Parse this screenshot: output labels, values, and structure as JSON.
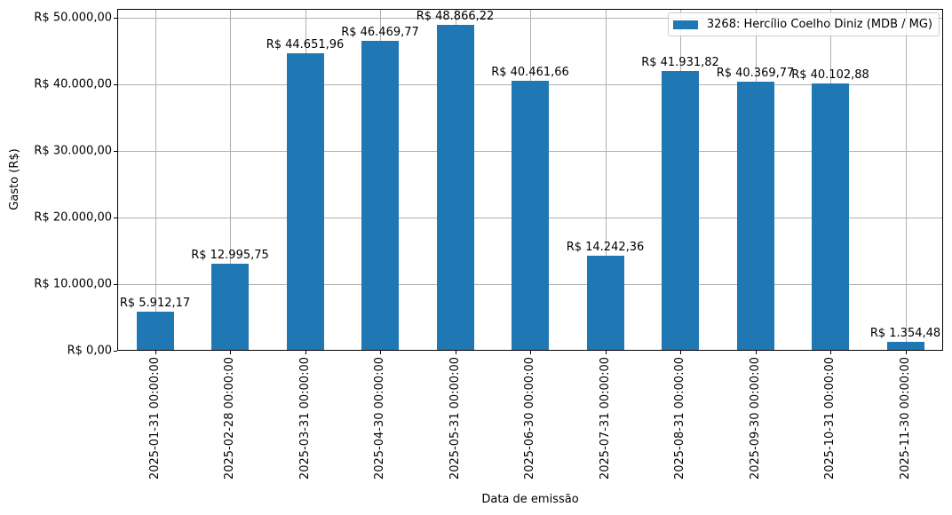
{
  "chart_data": {
    "type": "bar",
    "title": "",
    "xlabel": "Data de emissão",
    "ylabel": "Gasto (R$)",
    "ylim": [
      0,
      51310
    ],
    "grid": true,
    "legend_position": "upper right",
    "categories": [
      "2025-01-31 00:00:00",
      "2025-02-28 00:00:00",
      "2025-03-31 00:00:00",
      "2025-04-30 00:00:00",
      "2025-05-31 00:00:00",
      "2025-06-30 00:00:00",
      "2025-07-31 00:00:00",
      "2025-08-31 00:00:00",
      "2025-09-30 00:00:00",
      "2025-10-31 00:00:00",
      "2025-11-30 00:00:00"
    ],
    "series": [
      {
        "name": "3268: Hercílio Coelho Diniz (MDB / MG)",
        "color": "#1f77b4",
        "values": [
          5912.17,
          12995.75,
          44651.96,
          46469.77,
          48866.22,
          40461.66,
          14242.36,
          41931.82,
          40369.77,
          40102.88,
          1354.48
        ]
      }
    ],
    "bar_labels": [
      "R$ 5.912,17",
      "R$ 12.995,75",
      "R$ 44.651,96",
      "R$ 46.469,77",
      "R$ 48.866,22",
      "R$ 40.461,66",
      "R$ 14.242,36",
      "R$ 41.931,82",
      "R$ 40.369,77",
      "R$ 40.102,88",
      "R$ 1.354,48"
    ],
    "yticks": [
      {
        "value": 0,
        "label": "R$ 0,00"
      },
      {
        "value": 10000,
        "label": "R$ 10.000,00"
      },
      {
        "value": 20000,
        "label": "R$ 20.000,00"
      },
      {
        "value": 30000,
        "label": "R$ 30.000,00"
      },
      {
        "value": 40000,
        "label": "R$ 40.000,00"
      },
      {
        "value": 50000,
        "label": "R$ 50.000,00"
      }
    ]
  }
}
